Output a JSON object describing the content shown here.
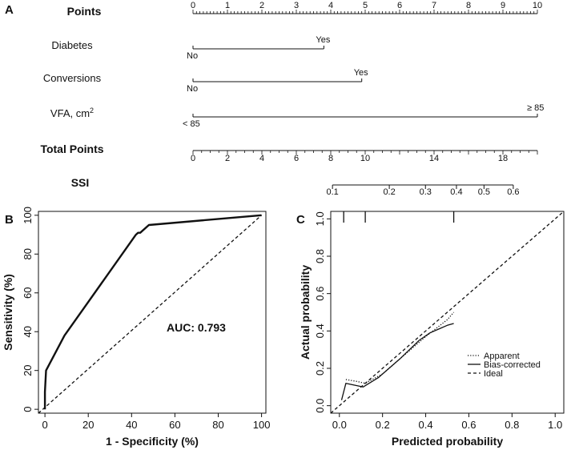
{
  "chart_data": [
    {
      "panel": "A",
      "type": "nomogram",
      "scales": [
        {
          "key": "points",
          "label": "Points",
          "bold": true,
          "range": [
            0,
            10
          ],
          "major_ticks": [
            0,
            1,
            2,
            3,
            4,
            5,
            6,
            7,
            8,
            9,
            10
          ],
          "minor_step": 0.1
        },
        {
          "key": "diabetes",
          "label": "Diabetes",
          "levels": [
            {
              "text": "No",
              "points": 0
            },
            {
              "text": "Yes",
              "points": 3.8
            }
          ]
        },
        {
          "key": "conversions",
          "label": "Conversions",
          "levels": [
            {
              "text": "No",
              "points": 0
            },
            {
              "text": "Yes",
              "points": 4.9
            }
          ]
        },
        {
          "key": "vfa",
          "label": "VFA, cm",
          "label_sup": "2",
          "levels": [
            {
              "text": "< 85",
              "points": 0
            },
            {
              "text": "≥ 85",
              "points": 10
            }
          ]
        },
        {
          "key": "total",
          "label": "Total Points",
          "bold": true,
          "range": [
            0,
            20
          ],
          "major_ticks": [
            0,
            2,
            4,
            6,
            8,
            10,
            14,
            18
          ],
          "minor_step": 0.5
        },
        {
          "key": "ssi",
          "label": "SSI",
          "bold": true,
          "prob_ticks": [
            {
              "text": "0.1",
              "total": 8.1
            },
            {
              "text": "0.2",
              "total": 11.4
            },
            {
              "text": "0.3",
              "total": 13.5
            },
            {
              "text": "0.4",
              "total": 15.3
            },
            {
              "text": "0.5",
              "total": 16.9
            },
            {
              "text": "0.6",
              "total": 18.6
            }
          ]
        }
      ]
    },
    {
      "panel": "B",
      "type": "line",
      "title": "",
      "xlabel": "1 - Specificity (%)",
      "ylabel": "Sensitivity (%)",
      "xlim": [
        -3,
        102
      ],
      "ylim": [
        -2,
        102
      ],
      "xticks": [
        0,
        20,
        40,
        60,
        80,
        100
      ],
      "yticks": [
        0,
        20,
        40,
        60,
        80,
        100
      ],
      "annotation": "AUC: 0.793",
      "series": [
        {
          "name": "ROC",
          "style": "solid-thick",
          "x": [
            0,
            0,
            0.5,
            9,
            42,
            43,
            44,
            48,
            100
          ],
          "y": [
            0,
            9,
            20,
            38,
            90,
            91,
            91,
            95,
            100
          ]
        },
        {
          "name": "Reference",
          "style": "dashed",
          "x": [
            -3,
            100
          ],
          "y": [
            -2,
            100
          ]
        }
      ]
    },
    {
      "panel": "C",
      "type": "line",
      "title": "",
      "xlabel": "Predicted probability",
      "ylabel": "Actual probability",
      "xlim": [
        -0.04,
        1.04
      ],
      "ylim": [
        -0.04,
        1.04
      ],
      "xticks": [
        0.0,
        0.2,
        0.4,
        0.6,
        0.8,
        1.0
      ],
      "xtick_labels": [
        "0.0",
        "0.2",
        "0.4",
        "0.6",
        "0.8",
        "1.0"
      ],
      "yticks": [
        0.0,
        0.2,
        0.4,
        0.6,
        0.8,
        1.0
      ],
      "ytick_labels": [
        "0.0",
        "0.2",
        "0.4",
        "0.6",
        "0.8",
        "1.0"
      ],
      "rug": [
        0.02,
        0.12,
        0.53
      ],
      "legend": [
        "Apparent",
        "Bias-corrected",
        "Ideal"
      ],
      "series": [
        {
          "name": "Apparent",
          "style": "dotted",
          "x": [
            0.03,
            0.08,
            0.12,
            0.2,
            0.3,
            0.4,
            0.5,
            0.53
          ],
          "y": [
            0.14,
            0.13,
            0.12,
            0.17,
            0.27,
            0.37,
            0.46,
            0.5
          ]
        },
        {
          "name": "Bias-corrected",
          "style": "solid",
          "x": [
            0.01,
            0.03,
            0.07,
            0.11,
            0.18,
            0.28,
            0.37,
            0.42,
            0.46,
            0.5,
            0.53
          ],
          "y": [
            0.03,
            0.12,
            0.11,
            0.1,
            0.15,
            0.25,
            0.35,
            0.39,
            0.41,
            0.43,
            0.44
          ]
        },
        {
          "name": "Ideal",
          "style": "dashed",
          "x": [
            -0.04,
            1.04
          ],
          "y": [
            -0.04,
            1.04
          ]
        }
      ]
    }
  ],
  "panel_labels": {
    "a": "A",
    "b": "B",
    "c": "C"
  }
}
